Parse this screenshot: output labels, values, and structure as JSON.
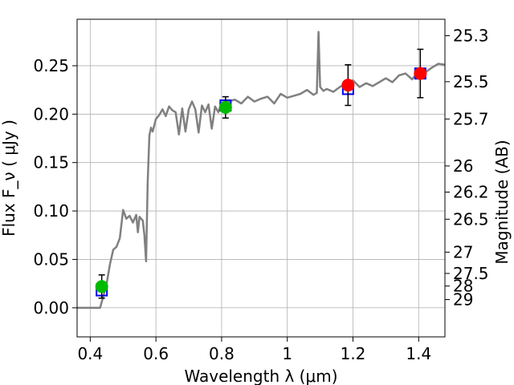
{
  "chart_data": {
    "type": "scatter",
    "title": "",
    "xlabel": "Wavelength  λ (μm)",
    "ylabel": "Flux  F_ν  ( μJy )",
    "y2label": "Magnitude (AB)",
    "xlim": [
      0.36,
      1.48
    ],
    "ylim": [
      -0.03,
      0.298
    ],
    "grid": true,
    "x_ticks": [
      0.4,
      0.6,
      0.8,
      1.0,
      1.2,
      1.4
    ],
    "x_tick_labels": [
      "0.4",
      "0.6",
      "0.8",
      "1",
      "1.2",
      "1.4"
    ],
    "y_ticks": [
      0.0,
      0.05,
      0.1,
      0.15,
      0.2,
      0.25
    ],
    "y_tick_labels": [
      "0.00",
      "0.05",
      "0.10",
      "0.15",
      "0.20",
      "0.25"
    ],
    "y2_ticks": [
      {
        "label": "25.3",
        "flux": 0.281
      },
      {
        "label": "25.5",
        "flux": 0.2335
      },
      {
        "label": "25.7",
        "flux": 0.195
      },
      {
        "label": "26",
        "flux": 0.1465
      },
      {
        "label": "26.2",
        "flux": 0.1195
      },
      {
        "label": "26.5",
        "flux": 0.0915
      },
      {
        "label": "27",
        "flux": 0.0575
      },
      {
        "label": "27.5",
        "flux": 0.0355
      },
      {
        "label": "28",
        "flux": 0.0225
      },
      {
        "label": "29",
        "flux": 0.0085
      }
    ],
    "series": [
      {
        "name": "model spectrum",
        "kind": "line",
        "color": "#808080",
        "x": [
          0.36,
          0.43,
          0.44,
          0.45,
          0.46,
          0.47,
          0.48,
          0.49,
          0.5,
          0.51,
          0.52,
          0.53,
          0.54,
          0.545,
          0.55,
          0.56,
          0.565,
          0.57,
          0.575,
          0.58,
          0.585,
          0.59,
          0.6,
          0.61,
          0.62,
          0.63,
          0.64,
          0.65,
          0.66,
          0.67,
          0.68,
          0.69,
          0.7,
          0.71,
          0.72,
          0.73,
          0.74,
          0.75,
          0.76,
          0.77,
          0.78,
          0.79,
          0.8,
          0.82,
          0.84,
          0.86,
          0.88,
          0.9,
          0.92,
          0.94,
          0.96,
          0.98,
          1.0,
          1.02,
          1.04,
          1.06,
          1.08,
          1.09,
          1.095,
          1.1,
          1.11,
          1.12,
          1.14,
          1.16,
          1.18,
          1.2,
          1.22,
          1.24,
          1.26,
          1.28,
          1.3,
          1.32,
          1.34,
          1.36,
          1.38,
          1.4,
          1.42,
          1.44,
          1.46,
          1.48
        ],
        "y": [
          0.0,
          0.0,
          0.012,
          0.025,
          0.045,
          0.06,
          0.063,
          0.072,
          0.101,
          0.092,
          0.095,
          0.088,
          0.096,
          0.078,
          0.094,
          0.09,
          0.075,
          0.048,
          0.13,
          0.178,
          0.186,
          0.182,
          0.195,
          0.199,
          0.205,
          0.198,
          0.208,
          0.204,
          0.202,
          0.179,
          0.206,
          0.182,
          0.205,
          0.213,
          0.205,
          0.181,
          0.209,
          0.202,
          0.21,
          0.185,
          0.208,
          0.202,
          0.212,
          0.213,
          0.215,
          0.211,
          0.218,
          0.213,
          0.216,
          0.218,
          0.211,
          0.221,
          0.217,
          0.219,
          0.221,
          0.225,
          0.22,
          0.222,
          0.285,
          0.228,
          0.224,
          0.226,
          0.223,
          0.228,
          0.232,
          0.235,
          0.228,
          0.232,
          0.229,
          0.233,
          0.237,
          0.233,
          0.24,
          0.242,
          0.236,
          0.244,
          0.243,
          0.248,
          0.252,
          0.251
        ]
      },
      {
        "name": "model photometry",
        "kind": "open-square",
        "color": "#0000ee",
        "x": [
          0.435,
          0.812,
          1.185,
          1.405
        ],
        "y": [
          0.018,
          0.209,
          0.226,
          0.242
        ]
      },
      {
        "name": "observed (green)",
        "kind": "point-errorbar",
        "color": "#00bb00",
        "x": [
          0.435,
          0.812
        ],
        "y": [
          0.022,
          0.207
        ],
        "yerr": [
          0.012,
          0.011
        ]
      },
      {
        "name": "observed (red)",
        "kind": "point-errorbar",
        "color": "#ff0000",
        "x": [
          1.185,
          1.405
        ],
        "y": [
          0.23,
          0.242
        ],
        "yerr": [
          0.021,
          0.025
        ]
      }
    ]
  }
}
